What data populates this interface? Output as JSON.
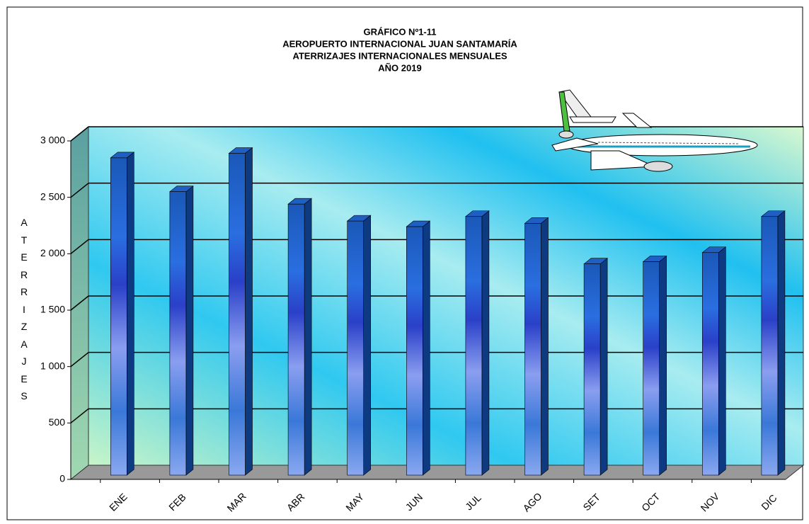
{
  "chart_data": {
    "type": "bar3d",
    "title_lines": [
      "GRÁFICO Nº1-11",
      "AEROPUERTO  INTERNACIONAL  JUAN SANTAMARÍA",
      "ATERRIZAJES INTERNACIONALES MENSUALES",
      "AÑO 2019"
    ],
    "y_label": "ATERRIZAJES",
    "categories": [
      "ENE",
      "FEB",
      "MAR",
      "ABR",
      "MAY",
      "JUN",
      "JUL",
      "AGO",
      "SET",
      "OCT",
      "NOV",
      "DIC"
    ],
    "values": [
      2850,
      2550,
      2890,
      2440,
      2290,
      2240,
      2330,
      2270,
      1910,
      1930,
      2010,
      2330
    ],
    "color": "#1f5fc4",
    "ylim": [
      0,
      3000
    ],
    "yticks": [
      0,
      500,
      {
        "value": 1000,
        "label": "1 000"
      },
      {
        "value": 1500,
        "label": "1 500"
      },
      {
        "value": 2000,
        "label": "2 000"
      },
      {
        "value": 2500,
        "label": "2 500"
      },
      {
        "value": 3000,
        "label": "3 000"
      }
    ],
    "grid": true
  }
}
